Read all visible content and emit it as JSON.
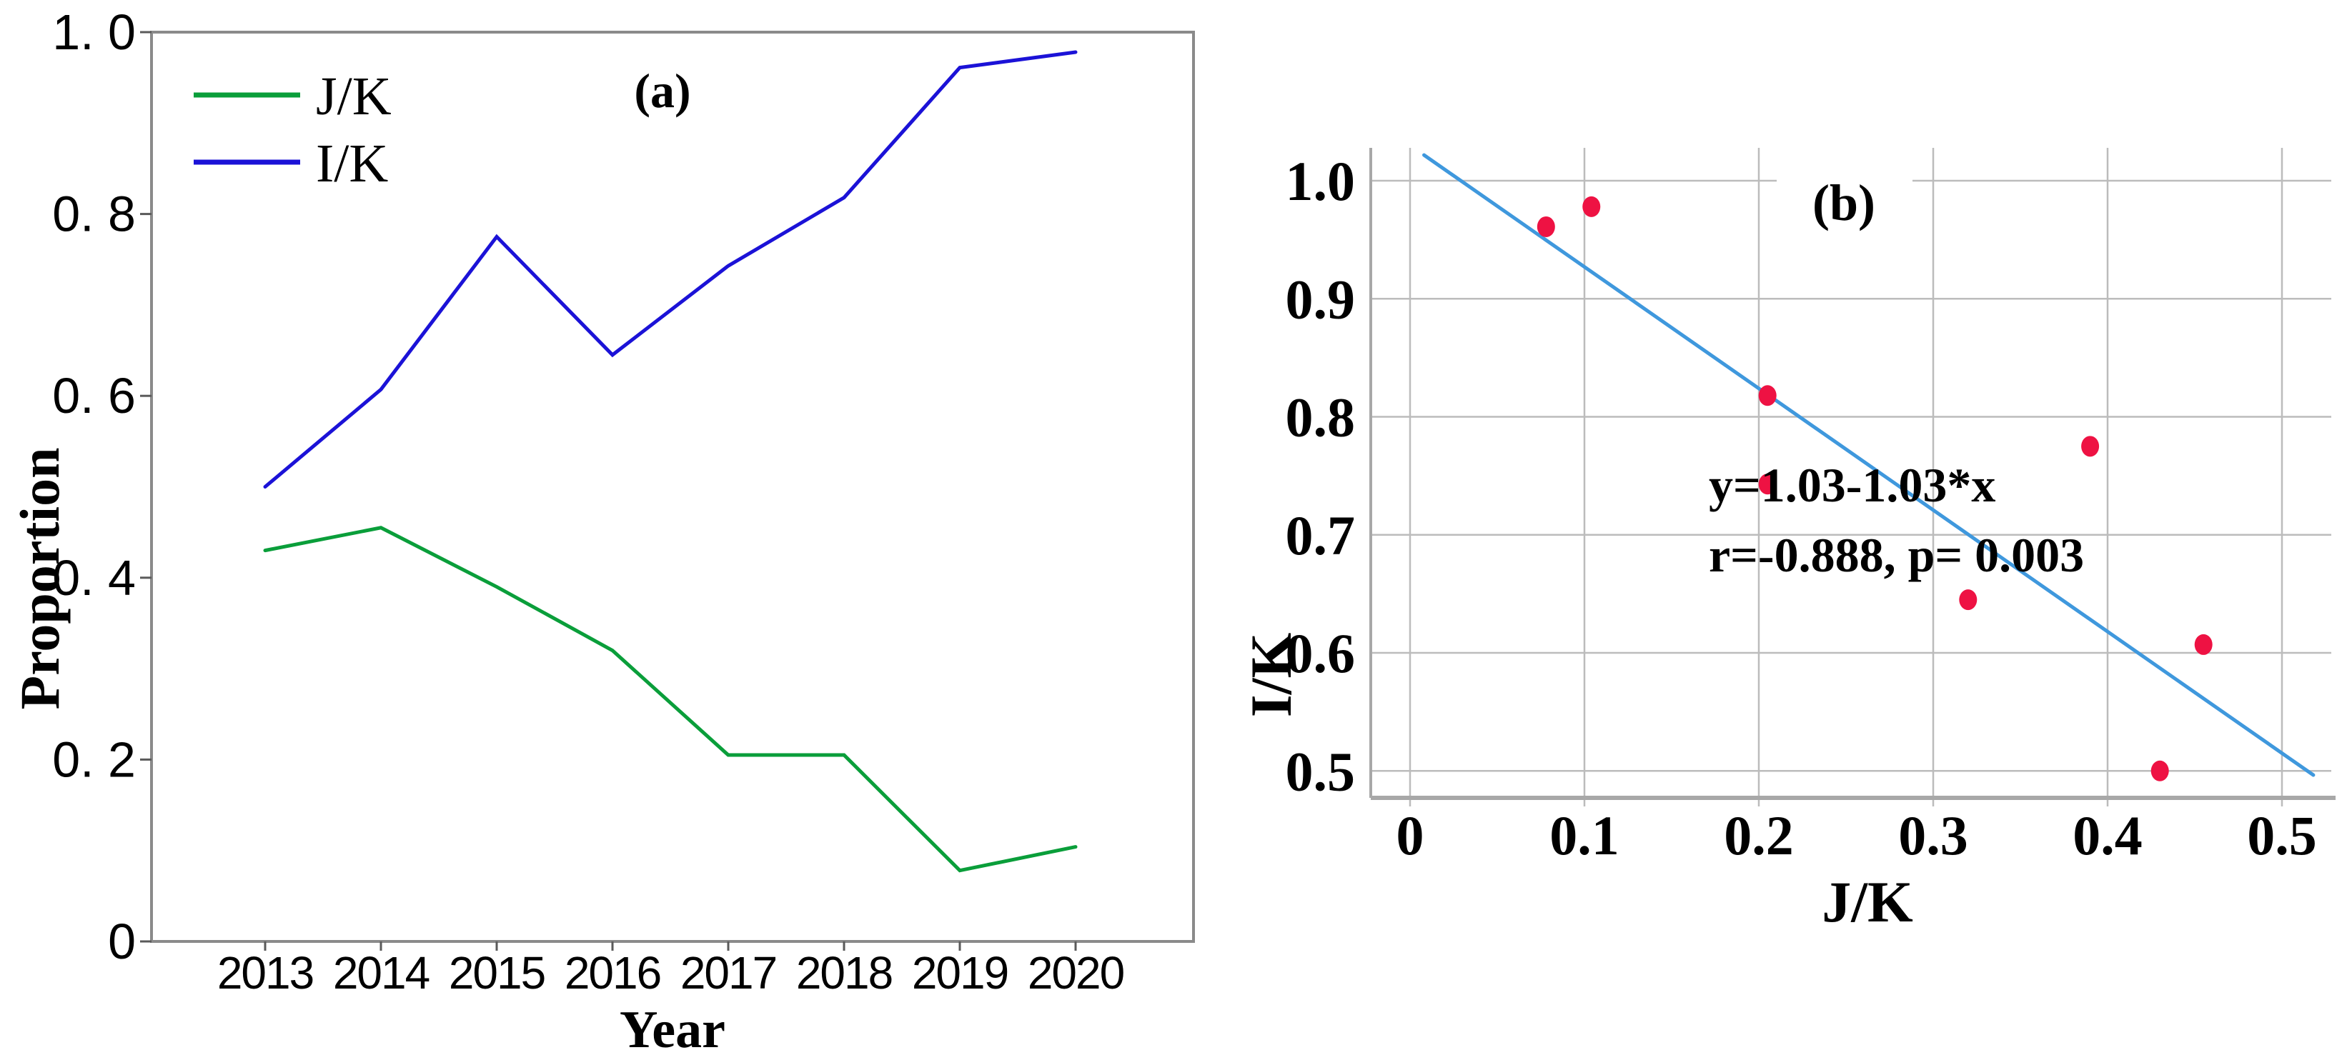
{
  "figure": {
    "background": "#ffffff",
    "grid_color": "#bcbcbc",
    "axis_color_a": "#8a8a8a",
    "axis_color_b": "#a8a8a8",
    "tick_color": "#5a5a5a",
    "text_color": "#000000"
  },
  "chart_data": [
    {
      "id": "a",
      "type": "line",
      "panel_label": "(a)",
      "xlabel": "Year",
      "ylabel": "Proportion",
      "categories": [
        "2013",
        "2014",
        "2015",
        "2016",
        "2017",
        "2018",
        "2019",
        "2020"
      ],
      "x_tick_labels": [
        "2013",
        "2014",
        "2015",
        "2016",
        "2017",
        "2018",
        "2019",
        "2020"
      ],
      "y_tick_values": [
        1.0,
        0.8,
        0.6,
        0.4,
        0.2,
        0
      ],
      "y_tick_labels": [
        "1. 0",
        "0. 8",
        "0. 6",
        "0. 4",
        "0. 2",
        "0"
      ],
      "ylim": [
        0,
        1.0
      ],
      "grid": false,
      "legend_position": "top-left",
      "series": [
        {
          "name": "J/K",
          "color": "#0a9e3a",
          "values": [
            0.43,
            0.455,
            0.39,
            0.32,
            0.205,
            0.205,
            0.078,
            0.104
          ]
        },
        {
          "name": "I/K",
          "color": "#1b12d7",
          "values": [
            0.5,
            0.607,
            0.775,
            0.645,
            0.743,
            0.818,
            0.961,
            0.978
          ]
        }
      ]
    },
    {
      "id": "b",
      "type": "scatter",
      "panel_label": "(b)",
      "xlabel": "J/K",
      "ylabel": "I/K",
      "x_tick_values": [
        0,
        0.1,
        0.2,
        0.3,
        0.4,
        0.5
      ],
      "x_tick_labels": [
        "0",
        "0.1",
        "0.2",
        "0.3",
        "0.4",
        "0.5"
      ],
      "y_tick_values": [
        1.0,
        0.9,
        0.8,
        0.7,
        0.6,
        0.5
      ],
      "y_tick_labels": [
        "1.0",
        "0.9",
        "0.8",
        "0.7",
        "0.6",
        "0.5"
      ],
      "xlim": [
        -0.022,
        0.519
      ],
      "ylim": [
        0.472,
        1.028
      ],
      "grid": true,
      "point_color": "#ee1243",
      "points": [
        [
          0.43,
          0.5
        ],
        [
          0.455,
          0.607
        ],
        [
          0.39,
          0.775
        ],
        [
          0.32,
          0.645
        ],
        [
          0.205,
          0.743
        ],
        [
          0.205,
          0.818
        ],
        [
          0.078,
          0.961
        ],
        [
          0.104,
          0.978
        ]
      ],
      "fit_line": {
        "intercept": 1.03,
        "slope": -1.03,
        "color": "#3f98dd",
        "x_start": 0.008,
        "x_end": 0.518
      },
      "annotation": {
        "line1": "y=1.03-1.03*x",
        "line2": "r=-0.888, p= 0.003"
      }
    }
  ]
}
